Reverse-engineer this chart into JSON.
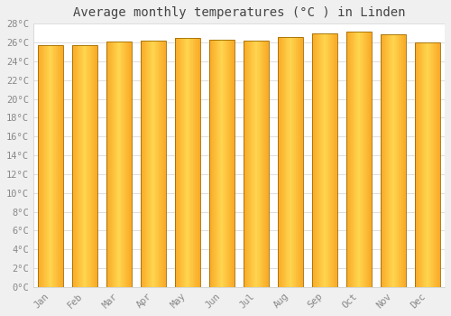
{
  "title": "Average monthly temperatures (°C ) in Linden",
  "months": [
    "Jan",
    "Feb",
    "Mar",
    "Apr",
    "May",
    "Jun",
    "Jul",
    "Aug",
    "Sep",
    "Oct",
    "Nov",
    "Dec"
  ],
  "temperatures": [
    25.7,
    25.7,
    26.1,
    26.2,
    26.5,
    26.3,
    26.2,
    26.6,
    27.0,
    27.2,
    26.9,
    26.0
  ],
  "bar_color_center": "#FFD54F",
  "bar_color_edge": "#F9A825",
  "bar_border_color": "#9E6B00",
  "background_color": "#f0f0f0",
  "plot_bg_color": "#ffffff",
  "grid_color": "#d0d0d0",
  "ytick_labels": [
    "0°C",
    "2°C",
    "4°C",
    "6°C",
    "8°C",
    "10°C",
    "12°C",
    "14°C",
    "16°C",
    "18°C",
    "20°C",
    "22°C",
    "24°C",
    "26°C",
    "28°C"
  ],
  "ytick_values": [
    0,
    2,
    4,
    6,
    8,
    10,
    12,
    14,
    16,
    18,
    20,
    22,
    24,
    26,
    28
  ],
  "ylim": [
    0,
    28
  ],
  "title_fontsize": 10,
  "tick_fontsize": 7.5,
  "title_color": "#444444",
  "tick_color": "#888888"
}
